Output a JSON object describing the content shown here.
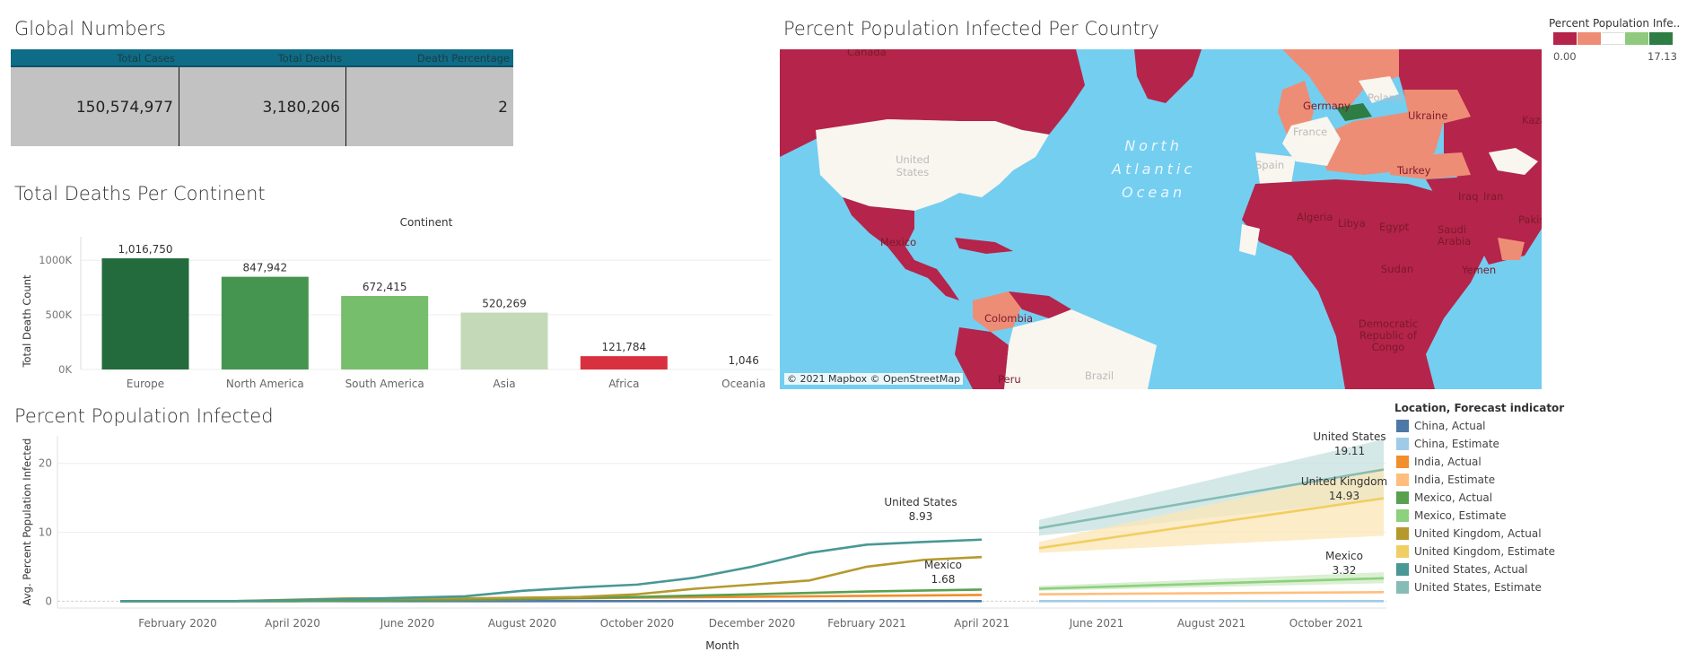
{
  "global_numbers": {
    "title": "Global Numbers",
    "headers": [
      "Total Cases",
      "Total Deaths",
      "Death Percentage"
    ],
    "values": [
      "150,574,977",
      "3,180,206",
      "2"
    ]
  },
  "map": {
    "title": "Percent Population Infected Per Country",
    "credit": "© 2021 Mapbox © OpenStreetMap",
    "ocean_label": [
      "North",
      "Atlantic",
      "Ocean"
    ],
    "country_labels": [
      "Canada",
      "United States",
      "Mexico",
      "Colombia",
      "Peru",
      "Brazil",
      "Germany",
      "Poland",
      "Ukraine",
      "France",
      "Spain",
      "Turkey",
      "Kazakhstan",
      "Pakistan",
      "Iraq",
      "Iran",
      "Algeria",
      "Libya",
      "Egypt",
      "Saudi Arabia",
      "Yemen",
      "Sudan",
      "Democratic Republic of Congo"
    ],
    "legend": {
      "title": "Percent Population Infe..",
      "min": "0.00",
      "max": "17.13",
      "colors": [
        "#b5244a",
        "#ee8d76",
        "#ffffff",
        "#8fc97d",
        "#2e7d44"
      ]
    },
    "colors": {
      "ocean": "#74cef0",
      "high_low": "#b5244a",
      "mid_low": "#ee8d76",
      "neutral": "#f8f6ef",
      "high": "#2e7d44"
    }
  },
  "continent_chart": {
    "title": "Total Deaths Per Continent",
    "header": "Continent",
    "ylabel": "Total Death Count"
  },
  "line_chart": {
    "title": "Percent Population Infected",
    "ylabel": "Avg. Percent Population Infected",
    "xlabel": "Month",
    "legend_title": "Location, Forecast indicator",
    "annotations": [
      {
        "name": "United States",
        "value": "8.93"
      },
      {
        "name": "Mexico",
        "value": "1.68"
      },
      {
        "name": "United States",
        "value": "19.11"
      },
      {
        "name": "United Kingdom",
        "value": "14.93"
      },
      {
        "name": "Mexico",
        "value": "3.32"
      }
    ]
  },
  "chart_data": [
    {
      "type": "bar",
      "title": "Total Deaths Per Continent",
      "xlabel": "Continent",
      "ylabel": "Total Death Count",
      "categories": [
        "Europe",
        "North America",
        "South America",
        "Asia",
        "Africa",
        "Oceania"
      ],
      "values": [
        1016750,
        847942,
        672415,
        520269,
        121784,
        1046
      ],
      "value_labels": [
        "1,016,750",
        "847,942",
        "672,415",
        "520,269",
        "121,784",
        "1,046"
      ],
      "colors": [
        "#236b3d",
        "#459551",
        "#76be6b",
        "#c3d9b8",
        "#d9303f",
        "#f4f0ea"
      ],
      "ylim": [
        0,
        1050000
      ],
      "yticks": [
        0,
        500000,
        1000000
      ],
      "ytick_labels": [
        "0K",
        "500K",
        "1000K"
      ],
      "grid": true
    },
    {
      "type": "line",
      "title": "Percent Population Infected",
      "xlabel": "Month",
      "ylabel": "Avg. Percent Population Infected",
      "x_ticks": [
        "February 2020",
        "April 2020",
        "June 2020",
        "August 2020",
        "October 2020",
        "December 2020",
        "February 2021",
        "April 2021",
        "June 2021",
        "August 2021",
        "October 2021"
      ],
      "ylim": [
        -1,
        24
      ],
      "yticks": [
        0,
        10,
        20
      ],
      "ytick_labels": [
        "0",
        "10",
        "20"
      ],
      "grid": true,
      "legend_position": "right",
      "series": [
        {
          "name": "China, Actual",
          "color": "#4e79a7",
          "x": [
            "2020-01",
            "2020-04",
            "2020-08",
            "2020-12",
            "2021-04"
          ],
          "y": [
            0,
            0,
            0,
            0,
            0
          ]
        },
        {
          "name": "China, Estimate",
          "color": "#a0cbe8",
          "x": [
            "2021-05",
            "2021-11"
          ],
          "y": [
            0,
            0
          ]
        },
        {
          "name": "India, Actual",
          "color": "#f28e2b",
          "x": [
            "2020-01",
            "2020-04",
            "2020-07",
            "2020-10",
            "2021-01",
            "2021-04"
          ],
          "y": [
            0,
            0,
            0.2,
            0.5,
            0.7,
            0.9
          ]
        },
        {
          "name": "India, Estimate",
          "color": "#ffbe7d",
          "x": [
            "2021-05",
            "2021-11"
          ],
          "y": [
            1.0,
            1.3
          ]
        },
        {
          "name": "Mexico, Actual",
          "color": "#59a14f",
          "x": [
            "2020-01",
            "2020-04",
            "2020-07",
            "2020-10",
            "2020-12",
            "2021-02",
            "2021-04"
          ],
          "y": [
            0,
            0,
            0.2,
            0.6,
            1.0,
            1.4,
            1.68
          ]
        },
        {
          "name": "Mexico, Estimate",
          "color": "#8cd17d",
          "x": [
            "2021-05",
            "2021-11"
          ],
          "y": [
            1.8,
            3.32
          ]
        },
        {
          "name": "United Kingdom, Actual",
          "color": "#b6992d",
          "x": [
            "2020-01",
            "2020-03",
            "2020-05",
            "2020-07",
            "2020-09",
            "2020-10",
            "2020-11",
            "2020-12",
            "2021-01",
            "2021-02",
            "2021-03",
            "2021-04"
          ],
          "y": [
            0,
            0,
            0.4,
            0.4,
            0.6,
            1.0,
            1.8,
            2.4,
            3.0,
            5.0,
            6.0,
            6.4
          ]
        },
        {
          "name": "United Kingdom, Estimate",
          "color": "#f1ce63",
          "x": [
            "2021-05",
            "2021-11"
          ],
          "y": [
            7.7,
            14.93
          ]
        },
        {
          "name": "United States, Actual",
          "color": "#499894",
          "x": [
            "2020-01",
            "2020-03",
            "2020-05",
            "2020-07",
            "2020-08",
            "2020-09",
            "2020-10",
            "2020-11",
            "2020-12",
            "2021-01",
            "2021-02",
            "2021-03",
            "2021-04"
          ],
          "y": [
            0,
            0,
            0.3,
            0.7,
            1.5,
            2.0,
            2.4,
            3.4,
            5.0,
            7.0,
            8.2,
            8.6,
            8.93
          ]
        },
        {
          "name": "United States, Estimate",
          "color": "#86bcb6",
          "x": [
            "2021-05",
            "2021-11"
          ],
          "y": [
            10.6,
            19.11
          ]
        }
      ],
      "bands": [
        {
          "series": "United States, Estimate",
          "x": [
            "2021-05",
            "2021-11"
          ],
          "lower": [
            9.5,
            14.8
          ],
          "upper": [
            11.8,
            23.5
          ],
          "color": "#c6e2df"
        },
        {
          "series": "United Kingdom, Estimate",
          "x": [
            "2021-05",
            "2021-11"
          ],
          "lower": [
            7.0,
            9.5
          ],
          "upper": [
            8.6,
            19.5
          ],
          "color": "#fbe6b5"
        },
        {
          "series": "Mexico, Estimate",
          "x": [
            "2021-05",
            "2021-11"
          ],
          "lower": [
            1.5,
            2.6
          ],
          "upper": [
            2.2,
            4.2
          ],
          "color": "#cfeac4"
        }
      ]
    }
  ]
}
